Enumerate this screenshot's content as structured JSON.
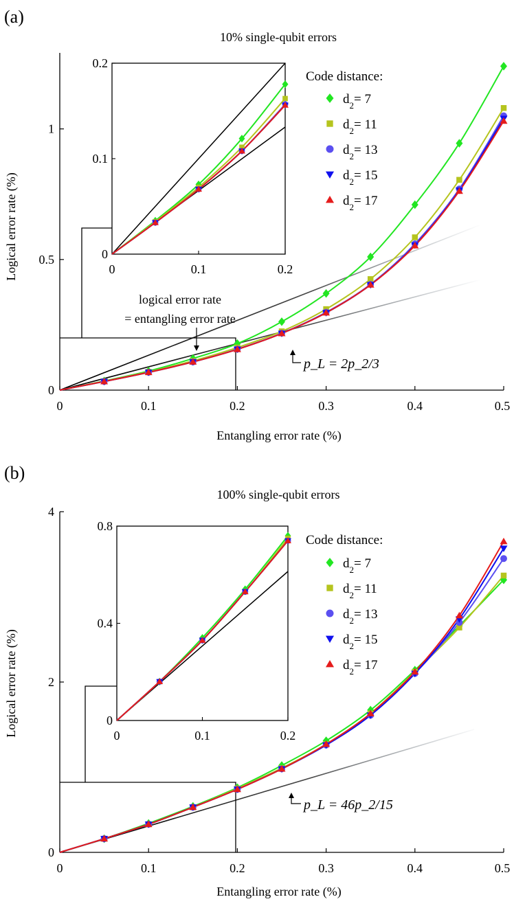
{
  "chart_data": [
    {
      "type": "line",
      "panel_label": "(a)",
      "title": "10% single-qubit errors",
      "xlabel": "Entangling error rate (%)",
      "ylabel": "Logical error rate (%)",
      "xlim": [
        0,
        0.5
      ],
      "ylim": [
        0,
        1.25
      ],
      "xticks": [
        0,
        0.1,
        0.2,
        0.3,
        0.4,
        0.5
      ],
      "xtick_labels": [
        "0",
        "0.1",
        "0.2",
        "0.3",
        "0.4",
        "0.5"
      ],
      "yticks": [
        0,
        0.5,
        1
      ],
      "ytick_labels": [
        "0",
        "0.5",
        "1"
      ],
      "legend_title": "Code distance:",
      "x": [
        0.05,
        0.1,
        0.15,
        0.2,
        0.25,
        0.3,
        0.35,
        0.4,
        0.45,
        0.5
      ],
      "series": [
        {
          "name": "7",
          "color": "#22e622",
          "marker": "diamond",
          "values": [
            0.035,
            0.073,
            0.121,
            0.178,
            0.262,
            0.37,
            0.51,
            0.71,
            0.945,
            1.24
          ]
        },
        {
          "name": "11",
          "color": "#b5c41e",
          "marker": "square",
          "values": [
            0.034,
            0.07,
            0.112,
            0.163,
            0.225,
            0.31,
            0.425,
            0.585,
            0.805,
            1.08
          ]
        },
        {
          "name": "13",
          "color": "#5b4ff0",
          "marker": "circle",
          "values": [
            0.033,
            0.068,
            0.108,
            0.157,
            0.218,
            0.298,
            0.405,
            0.56,
            0.77,
            1.05
          ]
        },
        {
          "name": "15",
          "color": "#1010ee",
          "marker": "triangle-down",
          "values": [
            0.033,
            0.068,
            0.108,
            0.156,
            0.217,
            0.296,
            0.403,
            0.555,
            0.765,
            1.04
          ]
        },
        {
          "name": "17",
          "color": "#e51c1c",
          "marker": "triangle-up",
          "values": [
            0.033,
            0.068,
            0.108,
            0.156,
            0.217,
            0.296,
            0.403,
            0.553,
            0.762,
            1.03
          ]
        }
      ],
      "reference_lines": [
        {
          "name": "logical error rate = entangling error rate",
          "slope": 1
        },
        {
          "name": "p_L = 2p_2/3",
          "slope": 0.6667
        }
      ],
      "annotations": {
        "equal_label_1": "logical error rate",
        "equal_label_2": "= entangling error rate",
        "fit_label": "p_L = 2p_2/3"
      },
      "inset": {
        "xlim": [
          0,
          0.2
        ],
        "ylim": [
          0,
          0.2
        ],
        "xticks": [
          0,
          0.1,
          0.2
        ],
        "xtick_labels": [
          "0",
          "0.1",
          "0.2"
        ],
        "yticks": [
          0,
          0.1,
          0.2
        ],
        "ytick_labels": [
          "0",
          "0.1",
          "0.2"
        ],
        "zoom_box": {
          "x": [
            0,
            0.2
          ],
          "y": [
            0,
            0.2
          ]
        }
      }
    },
    {
      "type": "line",
      "panel_label": "(b)",
      "title": "100% single-qubit errors",
      "xlabel": "Entangling error rate (%)",
      "ylabel": "Logical error rate (%)",
      "xlim": [
        0,
        0.5
      ],
      "ylim": [
        0,
        4
      ],
      "xticks": [
        0,
        0.1,
        0.2,
        0.3,
        0.4,
        0.5
      ],
      "xtick_labels": [
        "0",
        "0.1",
        "0.2",
        "0.3",
        "0.4",
        "0.5"
      ],
      "yticks": [
        0,
        2,
        4
      ],
      "ytick_labels": [
        "0",
        "2",
        "4"
      ],
      "legend_title": "Code distance:",
      "x": [
        0.05,
        0.1,
        0.15,
        0.2,
        0.25,
        0.3,
        0.35,
        0.4,
        0.45,
        0.5
      ],
      "series": [
        {
          "name": "7",
          "color": "#22e622",
          "marker": "diamond",
          "values": [
            0.16,
            0.34,
            0.54,
            0.76,
            1.02,
            1.31,
            1.67,
            2.14,
            2.66,
            3.2
          ]
        },
        {
          "name": "11",
          "color": "#b5c41e",
          "marker": "square",
          "values": [
            0.16,
            0.33,
            0.53,
            0.75,
            0.99,
            1.27,
            1.63,
            2.12,
            2.64,
            3.25
          ]
        },
        {
          "name": "13",
          "color": "#5b4ff0",
          "marker": "circle",
          "values": [
            0.16,
            0.33,
            0.53,
            0.74,
            0.98,
            1.26,
            1.61,
            2.1,
            2.7,
            3.45
          ]
        },
        {
          "name": "15",
          "color": "#1010ee",
          "marker": "triangle-down",
          "values": [
            0.16,
            0.33,
            0.53,
            0.74,
            0.98,
            1.26,
            1.61,
            2.1,
            2.74,
            3.57
          ]
        },
        {
          "name": "17",
          "color": "#e51c1c",
          "marker": "triangle-up",
          "values": [
            0.16,
            0.33,
            0.53,
            0.74,
            0.98,
            1.27,
            1.63,
            2.12,
            2.78,
            3.65
          ]
        }
      ],
      "reference_lines": [
        {
          "name": "p_L = 46p_2/15",
          "slope": 3.0667
        }
      ],
      "annotations": {
        "fit_label": "p_L = 46p_2/15"
      },
      "inset": {
        "xlim": [
          0,
          0.2
        ],
        "ylim": [
          0,
          0.8
        ],
        "xticks": [
          0,
          0.1,
          0.2
        ],
        "xtick_labels": [
          "0",
          "0.1",
          "0.2"
        ],
        "yticks": [
          0,
          0.4,
          0.8
        ],
        "ytick_labels": [
          "0",
          "0.4",
          "0.8"
        ],
        "zoom_box": {
          "x": [
            0,
            0.2
          ],
          "y": [
            0,
            0.84
          ]
        }
      }
    }
  ]
}
